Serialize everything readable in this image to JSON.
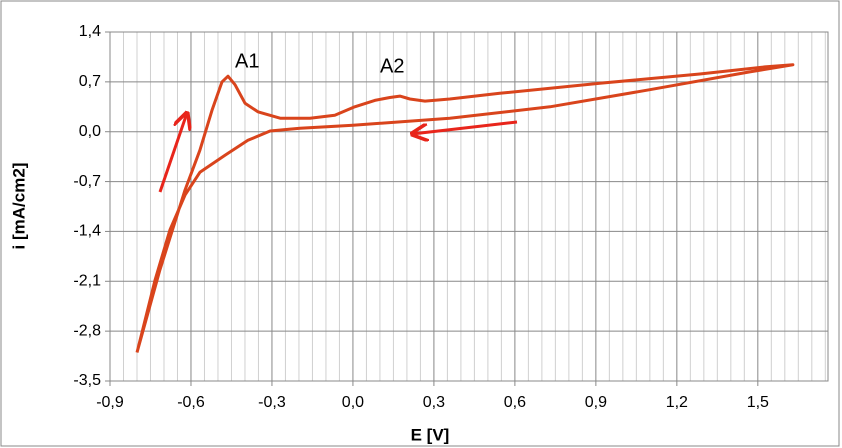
{
  "chart_data": {
    "type": "line",
    "xlabel": "E [V]",
    "ylabel": "i [mA/cm2]",
    "annotations": [
      "A1",
      "A2"
    ],
    "color": "#d9441c",
    "x": [
      -0.8,
      -0.715,
      -0.622,
      -0.567,
      -0.522,
      -0.485,
      -0.463,
      -0.437,
      -0.4,
      -0.352,
      -0.27,
      -0.159,
      -0.067,
      0.007,
      0.081,
      0.137,
      0.174,
      0.211,
      0.267,
      0.359,
      0.544,
      0.915,
      1.285,
      1.526,
      1.63,
      1.47,
      1.1,
      0.73,
      0.359,
      0.0,
      -0.196,
      -0.307,
      -0.389,
      -0.474,
      -0.567,
      -0.622,
      -0.678,
      -0.733,
      -0.8
    ],
    "values": [
      -3.1,
      -1.94,
      -0.82,
      -0.26,
      0.3,
      0.7,
      0.78,
      0.66,
      0.4,
      0.28,
      0.19,
      0.19,
      0.23,
      0.35,
      0.44,
      0.48,
      0.5,
      0.46,
      0.43,
      0.46,
      0.54,
      0.68,
      0.81,
      0.91,
      0.94,
      0.84,
      0.59,
      0.35,
      0.19,
      0.09,
      0.05,
      0.01,
      -0.12,
      -0.33,
      -0.57,
      -0.89,
      -1.38,
      -2.08,
      -3.1
    ],
    "xlim": [
      -0.9,
      1.76
    ],
    "ylim": [
      -3.5,
      1.4
    ],
    "xticks": [
      {
        "value": -0.9,
        "label": "-0,9"
      },
      {
        "value": -0.6,
        "label": "-0,6"
      },
      {
        "value": -0.3,
        "label": "-0,3"
      },
      {
        "value": 0.0,
        "label": "0,0"
      },
      {
        "value": 0.3,
        "label": "0,3"
      },
      {
        "value": 0.6,
        "label": "0,6"
      },
      {
        "value": 0.9,
        "label": "0,9"
      },
      {
        "value": 1.2,
        "label": "1,2"
      },
      {
        "value": 1.5,
        "label": "1,5"
      }
    ],
    "yticks": [
      {
        "value": -3.5,
        "label": "-3,5"
      },
      {
        "value": -2.8,
        "label": "-2,8"
      },
      {
        "value": -2.1,
        "label": "-2,1"
      },
      {
        "value": -1.4,
        "label": "-1,4"
      },
      {
        "value": -0.7,
        "label": "-0,7"
      },
      {
        "value": 0.0,
        "label": "0,0"
      },
      {
        "value": 0.7,
        "label": "0,7"
      },
      {
        "value": 1.4,
        "label": "1,4"
      }
    ],
    "grid": true
  }
}
